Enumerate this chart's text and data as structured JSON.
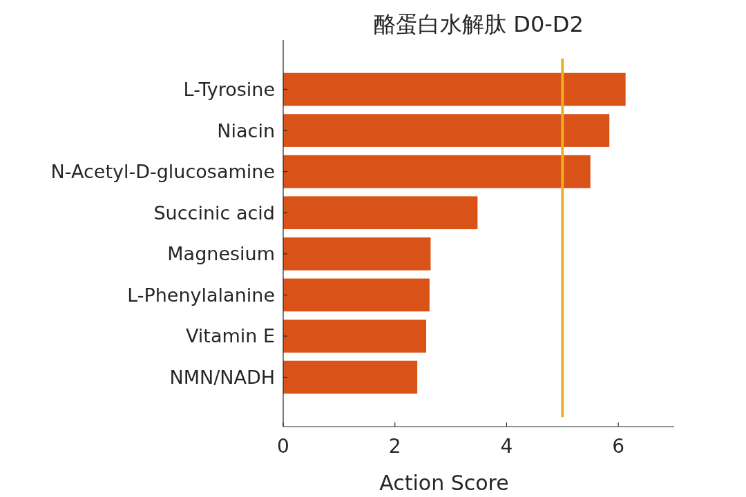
{
  "chart_data": {
    "type": "bar",
    "orientation": "horizontal",
    "title": "酪蛋白水解肽 D0-D2",
    "xlabel": "Action Score",
    "categories": [
      "L-Tyrosine",
      "Niacin",
      "N-Acetyl-D-glucosamine",
      "Succinic acid",
      "Magnesium",
      "L-Phenylalanine",
      "Vitamin E",
      "NMN/NADH"
    ],
    "values": [
      6.13,
      5.84,
      5.5,
      3.48,
      2.64,
      2.62,
      2.56,
      2.4
    ],
    "color": "#d95319",
    "xlim": [
      0,
      7
    ],
    "xticks": [
      0,
      2,
      4,
      6
    ],
    "ref_lines": [
      {
        "axis": "x",
        "value": 5,
        "color": "#edb120"
      }
    ]
  }
}
